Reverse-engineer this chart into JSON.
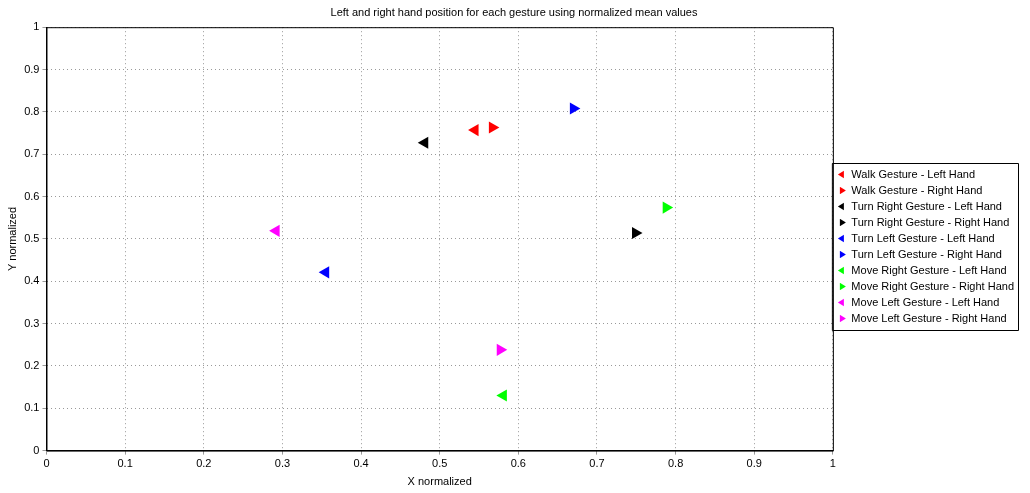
{
  "chart_data": {
    "type": "scatter",
    "title": "Left and right hand position for each gesture using normalized mean values",
    "xlabel": "X normalized",
    "ylabel": "Y normalized",
    "xlim": [
      0,
      1
    ],
    "ylim": [
      0,
      1
    ],
    "xticks": [
      0,
      0.1,
      0.2,
      0.3,
      0.4,
      0.5,
      0.6,
      0.7,
      0.8,
      0.9,
      1
    ],
    "yticks": [
      0,
      0.1,
      0.2,
      0.3,
      0.4,
      0.5,
      0.6,
      0.7,
      0.8,
      0.9,
      1
    ],
    "grid": true,
    "legend": "right",
    "series": [
      {
        "name": "Walk Gesture - Left Hand",
        "color": "#ff0000",
        "x": [
          0.545
        ],
        "values": [
          0.757
        ],
        "marker": "triangle-left"
      },
      {
        "name": "Walk Gesture - Right Hand",
        "color": "#ff0000",
        "x": [
          0.567
        ],
        "values": [
          0.763
        ],
        "marker": "triangle-right"
      },
      {
        "name": "Turn Right Gesture - Left Hand",
        "color": "#000000",
        "x": [
          0.481
        ],
        "values": [
          0.727
        ],
        "marker": "triangle-left"
      },
      {
        "name": "Turn Right Gesture - Right Hand",
        "color": "#000000",
        "x": [
          0.749
        ],
        "values": [
          0.514
        ],
        "marker": "triangle-right"
      },
      {
        "name": "Turn Left Gesture - Left Hand",
        "color": "#0000ff",
        "x": [
          0.355
        ],
        "values": [
          0.421
        ],
        "marker": "triangle-left"
      },
      {
        "name": "Turn Left Gesture - Right Hand",
        "color": "#0000ff",
        "x": [
          0.67
        ],
        "values": [
          0.808
        ],
        "marker": "triangle-right"
      },
      {
        "name": "Move Right Gesture - Left Hand",
        "color": "#00ff00",
        "x": [
          0.581
        ],
        "values": [
          0.13
        ],
        "marker": "triangle-left"
      },
      {
        "name": "Move Right Gesture - Right Hand",
        "color": "#00ff00",
        "x": [
          0.788
        ],
        "values": [
          0.574
        ],
        "marker": "triangle-right"
      },
      {
        "name": "Move Left Gesture - Left Hand",
        "color": "#ff00ff",
        "x": [
          0.292
        ],
        "values": [
          0.519
        ],
        "marker": "triangle-left"
      },
      {
        "name": "Move Left Gesture - Right Hand",
        "color": "#ff00ff",
        "x": [
          0.577
        ],
        "values": [
          0.238
        ],
        "marker": "triangle-right"
      }
    ]
  }
}
